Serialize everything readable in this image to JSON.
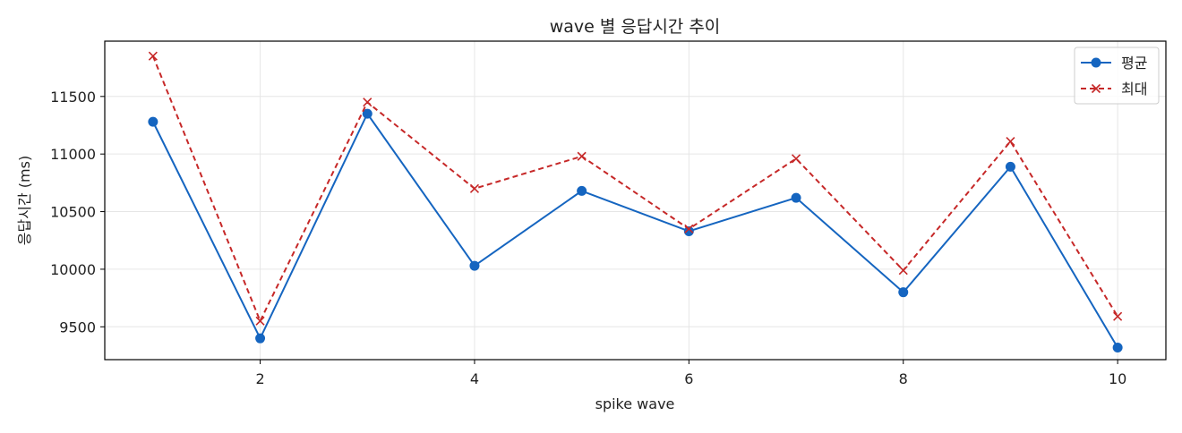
{
  "chart_data": {
    "type": "line",
    "title": "wave 별 응답시간 추이",
    "xlabel": "spike wave",
    "ylabel": "응답시간 (ms)",
    "x": [
      1,
      2,
      3,
      4,
      5,
      6,
      7,
      8,
      9,
      10
    ],
    "xlim": [
      0.55,
      10.45
    ],
    "ylim": [
      9215,
      11980
    ],
    "xticks": [
      2,
      4,
      6,
      8,
      10
    ],
    "yticks": [
      9500,
      10000,
      10500,
      11000,
      11500
    ],
    "grid": true,
    "legend_position": "top-right",
    "series": [
      {
        "name": "평균",
        "color": "#1565c0",
        "line_style": "solid",
        "marker": "circle",
        "values": [
          11280,
          9400,
          11350,
          10030,
          10680,
          10330,
          10620,
          9800,
          10890,
          9320
        ]
      },
      {
        "name": "최대",
        "color": "#c62828",
        "line_style": "dashed",
        "marker": "x",
        "values": [
          11850,
          9550,
          11450,
          10700,
          10980,
          10350,
          10960,
          9990,
          11110,
          9590
        ]
      }
    ]
  }
}
